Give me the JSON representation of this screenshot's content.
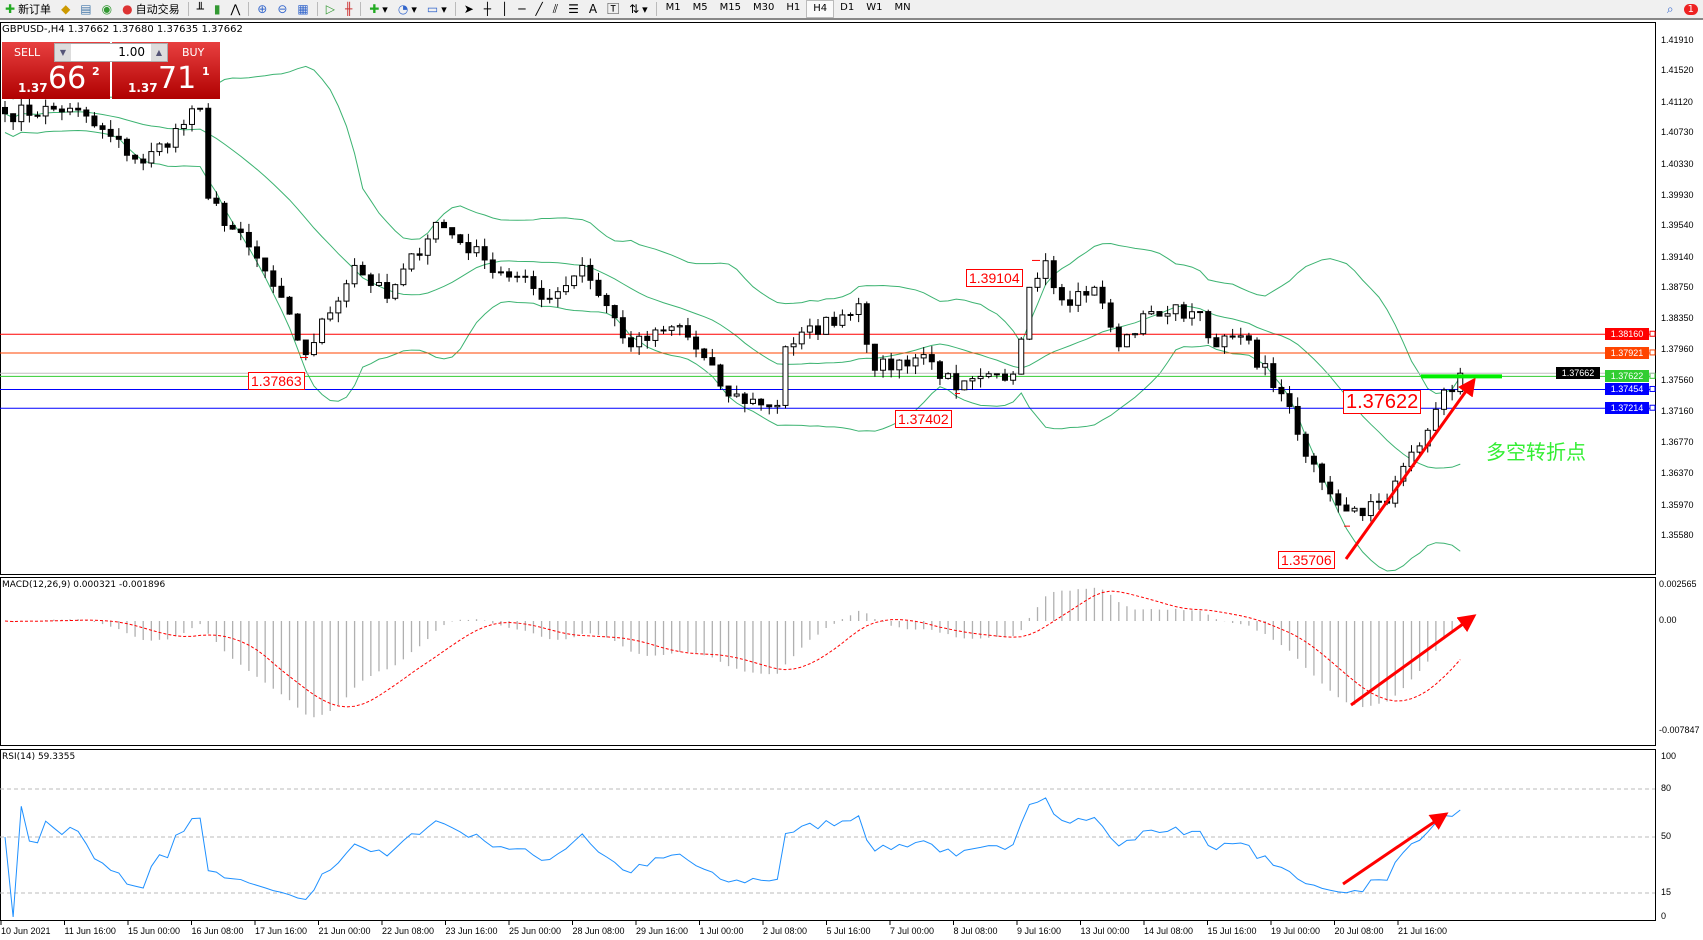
{
  "toolbar": {
    "new_order": "新订单",
    "auto_trading": "自动交易",
    "timeframes": [
      "M1",
      "M5",
      "M15",
      "M30",
      "H1",
      "H4",
      "D1",
      "W1",
      "MN"
    ],
    "active_timeframe": "H4",
    "notification_count": "1"
  },
  "chart": {
    "title": "GBPUSD-,H4  1.37662 1.37680 1.37635 1.37662",
    "symbol": "GBPUSD-",
    "timeframe": "H4",
    "ohlc": {
      "open": 1.37662,
      "high": 1.3768,
      "low": 1.37635,
      "close": 1.37662
    }
  },
  "trade_panel": {
    "sell_label": "SELL",
    "buy_label": "BUY",
    "volume": "1.00",
    "sell_price": {
      "prefix": "1.37",
      "big": "66",
      "sup": "2"
    },
    "buy_price": {
      "prefix": "1.37",
      "big": "71",
      "sup": "1"
    }
  },
  "price_axis": {
    "ticks": [
      "1.41910",
      "1.41520",
      "1.41120",
      "1.40730",
      "1.40330",
      "1.39930",
      "1.39540",
      "1.39140",
      "1.38750",
      "1.38350",
      "1.37960",
      "1.37560",
      "1.37160",
      "1.36770",
      "1.36370",
      "1.35970",
      "1.35580"
    ],
    "bid": "1.37662"
  },
  "levels": [
    {
      "price": "1.38160",
      "color": "#ff0000"
    },
    {
      "price": "1.37921",
      "color": "#ff4500"
    },
    {
      "price": "1.37622",
      "color": "#32cd32"
    },
    {
      "price": "1.37454",
      "color": "#0000ff"
    },
    {
      "price": "1.37214",
      "color": "#0000ff"
    }
  ],
  "annotations": {
    "low1": "1.37863",
    "low2": "1.37402",
    "high1": "1.39104",
    "low3": "1.35706",
    "pivot": "1.37622",
    "pivot_text": "多空转折点"
  },
  "time_axis": [
    "10 Jun 2021",
    "11 Jun 16:00",
    "15 Jun 00:00",
    "16 Jun 08:00",
    "17 Jun 16:00",
    "21 Jun 00:00",
    "22 Jun 08:00",
    "23 Jun 16:00",
    "25 Jun 00:00",
    "28 Jun 08:00",
    "29 Jun 16:00",
    "1 Jul 00:00",
    "2 Jul 08:00",
    "5 Jul 16:00",
    "7 Jul 00:00",
    "8 Jul 08:00",
    "9 Jul 16:00",
    "13 Jul 00:00",
    "14 Jul 08:00",
    "15 Jul 16:00",
    "19 Jul 00:00",
    "20 Jul 08:00",
    "21 Jul 16:00"
  ],
  "macd": {
    "title": "MACD(12,26,9) 0.000321 -0.001896",
    "axis": [
      "0.002565",
      "0.00",
      "-0.007847"
    ]
  },
  "rsi": {
    "title": "RSI(14) 59.3355",
    "axis": [
      "100",
      "80",
      "50",
      "15",
      "0"
    ]
  },
  "colors": {
    "bands": "#3cb371",
    "signal": "#ff0000",
    "rsi": "#1e90ff",
    "arrow": "#ff0000",
    "pivot_line": "#00ee00"
  },
  "chart_data": {
    "type": "candlestick",
    "note_series": "approximate closes read from chart, by bar index",
    "close_path": [
      [
        0,
        1.4098
      ],
      [
        8,
        1.4105
      ],
      [
        17,
        1.4035
      ],
      [
        24,
        1.4105
      ],
      [
        25,
        1.399
      ],
      [
        32,
        1.3897
      ],
      [
        37,
        1.379
      ],
      [
        43,
        1.3904
      ],
      [
        47,
        1.3862
      ],
      [
        53,
        1.3959
      ],
      [
        59,
        1.3911
      ],
      [
        67,
        1.3862
      ],
      [
        71,
        1.3904
      ],
      [
        77,
        1.38
      ],
      [
        83,
        1.3827
      ],
      [
        89,
        1.3737
      ],
      [
        95,
        1.3725
      ],
      [
        96,
        1.38
      ],
      [
        105,
        1.3855
      ],
      [
        107,
        1.377
      ],
      [
        113,
        1.379
      ],
      [
        117,
        1.3745
      ],
      [
        124,
        1.3765
      ],
      [
        126,
        1.3876
      ],
      [
        128,
        1.391
      ],
      [
        130,
        1.386
      ],
      [
        134,
        1.3876
      ],
      [
        137,
        1.38
      ],
      [
        141,
        1.3845
      ],
      [
        147,
        1.3845
      ],
      [
        149,
        1.38
      ],
      [
        152,
        1.3814
      ],
      [
        157,
        1.374
      ],
      [
        160,
        1.366
      ],
      [
        165,
        1.359
      ],
      [
        170,
        1.36
      ],
      [
        172,
        1.3647
      ],
      [
        176,
        1.372
      ],
      [
        179,
        1.37662
      ]
    ],
    "ylim": [
      1.3558,
      1.4191
    ],
    "indicators": [
      "Bollinger Bands(20,2)",
      "MACD(12,26,9)",
      "RSI(14)"
    ]
  }
}
